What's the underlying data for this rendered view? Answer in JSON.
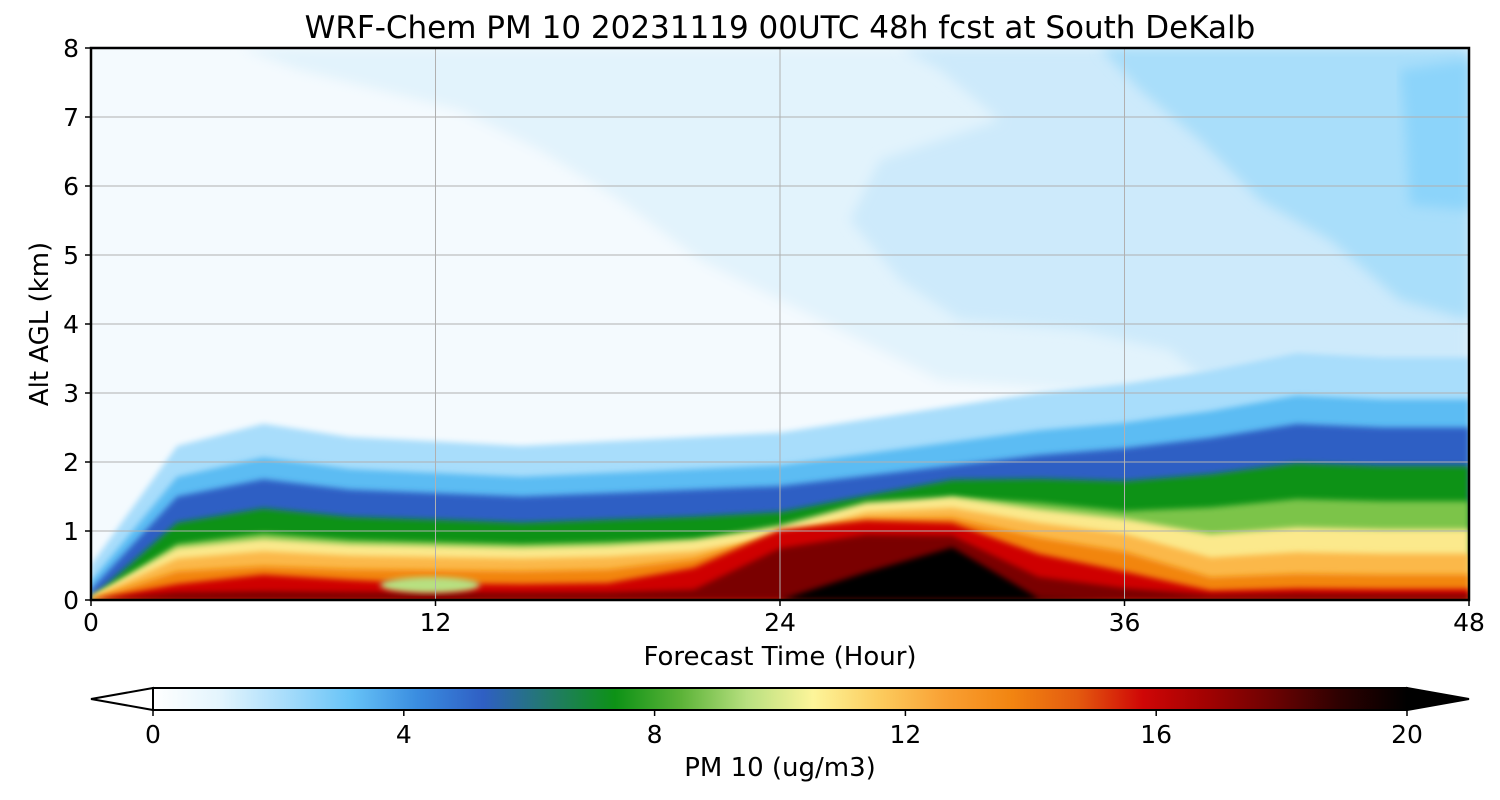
{
  "chart_data": {
    "type": "heatmap",
    "title": "WRF-Chem PM 10  20231119 00UTC 48h fcst at South DeKalb",
    "xlabel": "Forecast Time (Hour)",
    "ylabel": "Alt AGL (km)",
    "xlim": [
      0,
      48
    ],
    "ylim": [
      0,
      8
    ],
    "x_ticks": [
      0,
      12,
      24,
      36,
      48
    ],
    "y_ticks": [
      0,
      1,
      2,
      3,
      4,
      5,
      6,
      7,
      8
    ],
    "grid": true,
    "colorbar": {
      "label": "PM 10  (ug/m3)",
      "range": [
        0,
        20
      ],
      "ticks": [
        0,
        4,
        8,
        12,
        16,
        20
      ],
      "extend": "both",
      "orientation": "horizontal",
      "colors": [
        "#ffffff",
        "#e4f5fd",
        "#a8ddfb",
        "#67c3f7",
        "#3a8de0",
        "#2f5fc4",
        "#227a6a",
        "#0d9216",
        "#5cb338",
        "#b8e080",
        "#fdf59a",
        "#fccc5e",
        "#f9a033",
        "#f28511",
        "#e45b0f",
        "#cf0606",
        "#a00202",
        "#6a0202",
        "#2c0101",
        "#000000"
      ]
    },
    "profile_note_times_h": [
      0,
      3,
      6,
      9,
      12,
      15,
      18,
      21,
      24,
      27,
      30,
      33,
      36,
      39,
      42,
      45,
      48
    ],
    "boundary_layer_top_km": [
      0.2,
      1.55,
      1.8,
      1.65,
      1.6,
      1.55,
      1.6,
      1.65,
      1.7,
      1.85,
      2.0,
      2.15,
      2.25,
      2.4,
      2.6,
      2.55,
      2.55
    ],
    "max_core": {
      "time_h": 28.5,
      "alt_km": 0.5,
      "value_ugm3": 20
    }
  }
}
